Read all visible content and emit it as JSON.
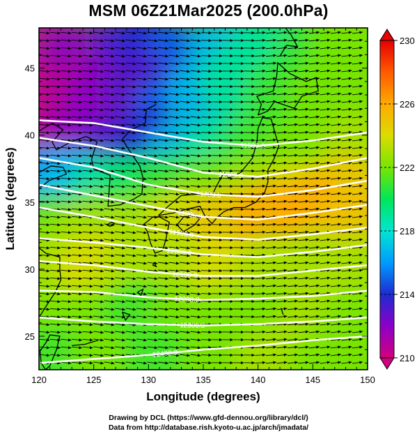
{
  "title": "MSM 06Z21Mar2025 (200.0hPa)",
  "chart_data": {
    "type": "heatmap",
    "title": "MSM 06Z21Mar2025 (200.0hPa)",
    "xlabel": "Longitude (degrees)",
    "ylabel": "Latitude  (degrees)",
    "xlim": [
      120,
      150
    ],
    "ylim": [
      22.5,
      48
    ],
    "x_ticks": [
      "120",
      "125",
      "130",
      "135",
      "140",
      "145",
      "150"
    ],
    "y_ticks": [
      "25",
      "30",
      "35",
      "40",
      "45"
    ],
    "colorbar": {
      "min": 210,
      "max": 230,
      "ticks": [
        "230",
        "226",
        "222",
        "218",
        "214",
        "210"
      ],
      "colors": [
        "#d2007d",
        "#8c00c8",
        "#1e2bd2",
        "#009bff",
        "#00e6d2",
        "#00e65a",
        "#78e600",
        "#dcdc00",
        "#ffaa00",
        "#ff5a00",
        "#e60000"
      ]
    },
    "contour_labels": [
      "11500.0",
      "11600.0",
      "11700.0",
      "11800.0",
      "11900.0",
      "12000.0",
      "12100.0",
      "12200.0",
      "12300.0",
      "12400.0"
    ],
    "contours": [
      {
        "level": "11500.0",
        "points": [
          [
            120,
            41.1
          ],
          [
            125,
            40.9
          ],
          [
            130,
            40.2
          ],
          [
            135,
            39.5
          ],
          [
            140,
            39.2
          ],
          [
            145,
            39.6
          ],
          [
            150,
            40.2
          ]
        ]
      },
      {
        "level": "11600.0",
        "points": [
          [
            120,
            39.8
          ],
          [
            125,
            39.2
          ],
          [
            130,
            38.3
          ],
          [
            135,
            37.2
          ],
          [
            140,
            36.9
          ],
          [
            145,
            37.5
          ],
          [
            150,
            38.3
          ]
        ]
      },
      {
        "level": "11700.0",
        "points": [
          [
            120,
            38.3
          ],
          [
            125,
            37.6
          ],
          [
            130,
            36.3
          ],
          [
            135,
            35.6
          ],
          [
            140,
            35.4
          ],
          [
            145,
            35.9
          ],
          [
            150,
            36.6
          ]
        ]
      },
      {
        "level": "11800.0",
        "points": [
          [
            120,
            36.3
          ],
          [
            125,
            35.5
          ],
          [
            130,
            34.7
          ],
          [
            135,
            33.9
          ],
          [
            140,
            33.7
          ],
          [
            145,
            34.2
          ],
          [
            150,
            34.8
          ]
        ]
      },
      {
        "level": "11900.0",
        "points": [
          [
            120,
            34.6
          ],
          [
            125,
            33.9
          ],
          [
            130,
            33.1
          ],
          [
            135,
            32.4
          ],
          [
            140,
            32.2
          ],
          [
            145,
            32.6
          ],
          [
            150,
            33.1
          ]
        ]
      },
      {
        "level": "12000.0",
        "points": [
          [
            120,
            32.3
          ],
          [
            125,
            32.0
          ],
          [
            130,
            31.6
          ],
          [
            135,
            31.1
          ],
          [
            140,
            30.9
          ],
          [
            145,
            31.3
          ],
          [
            150,
            31.8
          ]
        ]
      },
      {
        "level": "12100.0",
        "points": [
          [
            120,
            30.6
          ],
          [
            125,
            30.3
          ],
          [
            130,
            29.8
          ],
          [
            135,
            29.5
          ],
          [
            140,
            29.5
          ],
          [
            145,
            29.9
          ],
          [
            150,
            30.3
          ]
        ]
      },
      {
        "level": "12200.0",
        "points": [
          [
            120,
            28.4
          ],
          [
            125,
            28.3
          ],
          [
            130,
            27.9
          ],
          [
            135,
            27.7
          ],
          [
            140,
            27.8
          ],
          [
            145,
            28.0
          ],
          [
            150,
            28.4
          ]
        ]
      },
      {
        "level": "12300.0",
        "points": [
          [
            120,
            26.4
          ],
          [
            125,
            26.1
          ],
          [
            130,
            25.9
          ],
          [
            135,
            25.8
          ],
          [
            140,
            25.9
          ],
          [
            145,
            26.1
          ],
          [
            150,
            26.4
          ]
        ]
      },
      {
        "level": "12400.0",
        "points": [
          [
            120,
            23.0
          ],
          [
            125,
            23.3
          ],
          [
            130,
            23.6
          ],
          [
            135,
            24.0
          ],
          [
            140,
            24.3
          ],
          [
            145,
            24.7
          ],
          [
            150,
            25.0
          ]
        ]
      }
    ],
    "field_note_ignore": "",
    "field": [
      [
        120,
        47,
        211
      ],
      [
        124,
        46,
        212
      ],
      [
        128,
        47,
        213
      ],
      [
        130,
        46.5,
        214
      ],
      [
        133,
        46,
        215
      ],
      [
        137,
        46.5,
        217
      ],
      [
        141,
        47,
        219
      ],
      [
        145,
        46,
        221
      ],
      [
        148,
        47,
        222
      ],
      [
        120,
        42.5,
        210
      ],
      [
        123,
        43,
        211
      ],
      [
        126,
        43,
        212
      ],
      [
        129,
        43.5,
        213
      ],
      [
        132,
        42,
        215
      ],
      [
        135,
        43,
        217
      ],
      [
        138,
        44,
        219
      ],
      [
        142,
        43,
        221
      ],
      [
        146,
        43,
        222
      ],
      [
        121,
        39,
        211
      ],
      [
        124,
        39.5,
        212
      ],
      [
        127,
        39,
        213
      ],
      [
        130,
        39,
        214
      ],
      [
        133,
        38.5,
        217
      ],
      [
        136,
        38.5,
        219
      ],
      [
        140,
        39,
        221
      ],
      [
        144,
        39,
        222
      ],
      [
        149,
        39,
        223
      ],
      [
        120,
        36.5,
        216
      ],
      [
        123,
        36.5,
        217
      ],
      [
        126,
        36,
        219
      ],
      [
        129,
        36,
        220
      ],
      [
        132,
        36,
        221
      ],
      [
        136,
        36,
        222
      ],
      [
        140,
        36,
        223
      ],
      [
        144,
        35.5,
        224
      ],
      [
        148,
        36,
        225
      ],
      [
        121,
        33,
        222
      ],
      [
        125,
        33,
        223
      ],
      [
        129,
        33,
        223
      ],
      [
        133,
        33.5,
        224
      ],
      [
        137,
        33.5,
        225
      ],
      [
        141,
        34,
        226
      ],
      [
        145,
        34.5,
        226
      ],
      [
        149,
        34,
        225
      ],
      [
        121,
        30,
        223
      ],
      [
        125,
        30,
        224
      ],
      [
        129,
        30,
        223
      ],
      [
        133,
        30,
        223
      ],
      [
        137,
        30,
        224
      ],
      [
        141,
        30,
        223
      ],
      [
        145,
        30.5,
        223
      ],
      [
        149,
        30,
        223
      ],
      [
        121,
        26,
        222
      ],
      [
        125,
        26,
        222
      ],
      [
        129,
        26.5,
        221
      ],
      [
        133,
        26,
        222
      ],
      [
        137,
        26,
        222
      ],
      [
        141,
        26,
        222
      ],
      [
        145,
        26,
        223
      ],
      [
        149,
        26,
        222
      ],
      [
        121,
        23,
        221
      ],
      [
        126,
        23,
        222
      ],
      [
        131,
        23,
        221
      ],
      [
        136,
        23,
        222
      ],
      [
        141,
        23,
        223
      ],
      [
        146,
        23,
        222
      ]
    ],
    "grid": false,
    "legend": "right"
  },
  "credits": {
    "line1": "Drawing by DCL (https://www.gfd-dennou.org/library/dcl/)",
    "line2": "Data from http://database.rish.kyoto-u.ac.jp/arch/jmadata/"
  }
}
